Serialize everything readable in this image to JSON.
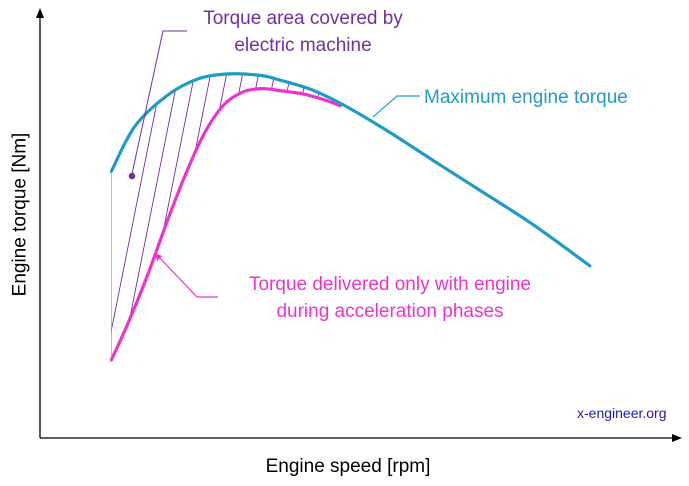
{
  "chart_data": {
    "type": "line",
    "title": "",
    "xlabel": "Engine speed [rpm]",
    "ylabel": "Engine torque [Nm]",
    "xlim": [
      0,
      100
    ],
    "ylim": [
      0,
      100
    ],
    "grid": false,
    "ticks": "none",
    "series": [
      {
        "name": "Maximum engine torque",
        "color": "#1f9bc6",
        "x": [
          11.3,
          15,
          20,
          25,
          30,
          35,
          38,
          43,
          48,
          55,
          63,
          70,
          78,
          87
        ],
        "y": [
          63.5,
          74.2,
          81.4,
          85.5,
          86.7,
          86.3,
          85.2,
          82.9,
          79.3,
          73.1,
          65.3,
          58.6,
          50.8,
          41.0
        ]
      },
      {
        "name": "Torque delivered only with engine during acceleration phases",
        "color": "#ee33cc",
        "x": [
          11.3,
          14,
          17,
          20,
          23,
          26,
          29,
          32,
          35,
          38,
          40,
          42,
          45,
          47.5
        ],
        "y": [
          18.6,
          27.6,
          38.7,
          51.1,
          62.7,
          72.5,
          79.2,
          82.3,
          83.2,
          82.7,
          82.3,
          81.8,
          80.5,
          79.1
        ]
      }
    ],
    "annotations": [
      {
        "text": "Torque area covered by electric machine",
        "color": "#7030a0",
        "points_to": "hatched area between curves"
      },
      {
        "text": "Maximum engine torque",
        "color": "#1f9bc6",
        "points_to": "upper curve"
      },
      {
        "text": "Torque delivered only with engine during acceleration phases",
        "color": "#ee33cc",
        "points_to": "lower curve"
      }
    ],
    "watermark": "x-engineer.org"
  },
  "labels": {
    "area_line1": "Torque area covered by",
    "area_line2": "electric machine",
    "max_torque": "Maximum engine torque",
    "engine_line1": "Torque delivered only with engine",
    "engine_line2": "during acceleration phases",
    "xlabel": "Engine speed [rpm]",
    "ylabel": "Engine torque [Nm]",
    "watermark": "x-engineer.org"
  }
}
